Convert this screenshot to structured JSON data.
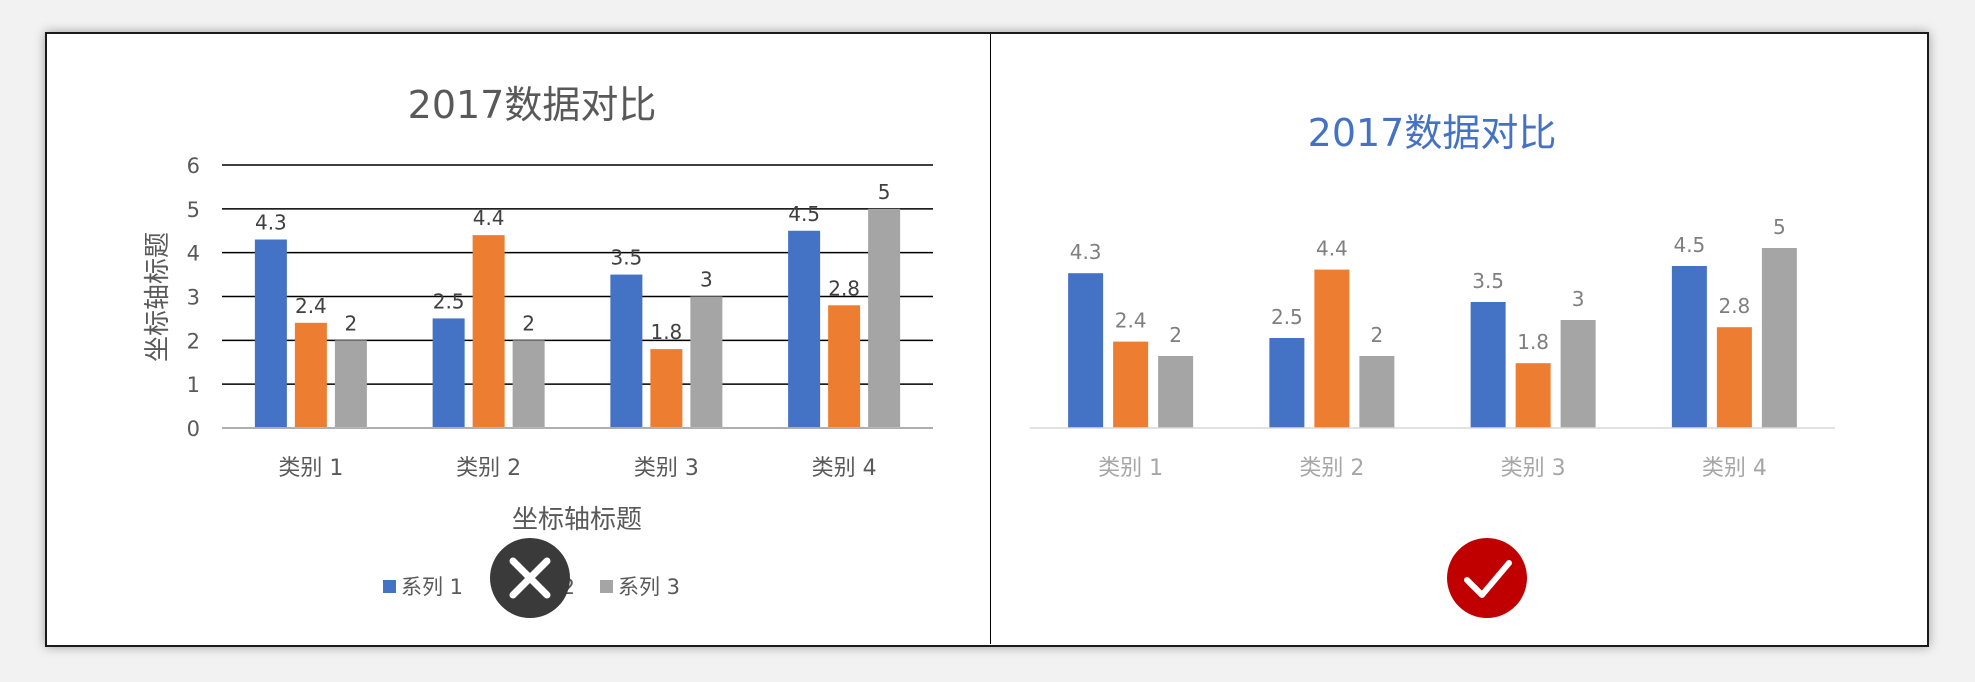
{
  "colors": {
    "series1": "#4472C4",
    "series2": "#ED7D31",
    "series3": "#A5A5A5",
    "bad": "#3a3a3a",
    "good": "#C00000",
    "good_title": "#4472C4"
  },
  "chart_data": [
    {
      "type": "bar",
      "title": "2017数据对比",
      "xlabel": "坐标轴标题",
      "ylabel": "坐标轴标题",
      "ylim": [
        0,
        6
      ],
      "yticks": [
        "0",
        "1",
        "2",
        "3",
        "4",
        "5",
        "6"
      ],
      "grid": true,
      "legend_placement": "bottom",
      "categories": [
        "类别 1",
        "类别 2",
        "类别 3",
        "类别 4"
      ],
      "series": [
        {
          "name": "系列 1",
          "values": [
            4.3,
            2.5,
            3.5,
            4.5
          ]
        },
        {
          "name": "系列 2",
          "values": [
            2.4,
            4.4,
            1.8,
            2.8
          ]
        },
        {
          "name": "系列 3",
          "values": [
            2,
            2,
            3,
            5
          ]
        }
      ],
      "data_labels": [
        [
          "4.3",
          "2.5",
          "3.5",
          "4.5"
        ],
        [
          "2.4",
          "4.4",
          "1.8",
          "2.8"
        ],
        [
          "2",
          "2",
          "3",
          "5"
        ]
      ],
      "status_icon": "cross-icon"
    },
    {
      "type": "bar",
      "title": "2017数据对比",
      "grid": false,
      "categories": [
        "类别 1",
        "类别 2",
        "类别 3",
        "类别 4"
      ],
      "series": [
        {
          "values": [
            4.3,
            2.5,
            3.5,
            4.5
          ]
        },
        {
          "values": [
            2.4,
            4.4,
            1.8,
            2.8
          ]
        },
        {
          "values": [
            2,
            2,
            3,
            5
          ]
        }
      ],
      "data_labels": [
        [
          "4.3",
          "2.5",
          "3.5",
          "4.5"
        ],
        [
          "2.4",
          "4.4",
          "1.8",
          "2.8"
        ],
        [
          "2",
          "2",
          "3",
          "5"
        ]
      ],
      "status_icon": "check-icon"
    }
  ]
}
